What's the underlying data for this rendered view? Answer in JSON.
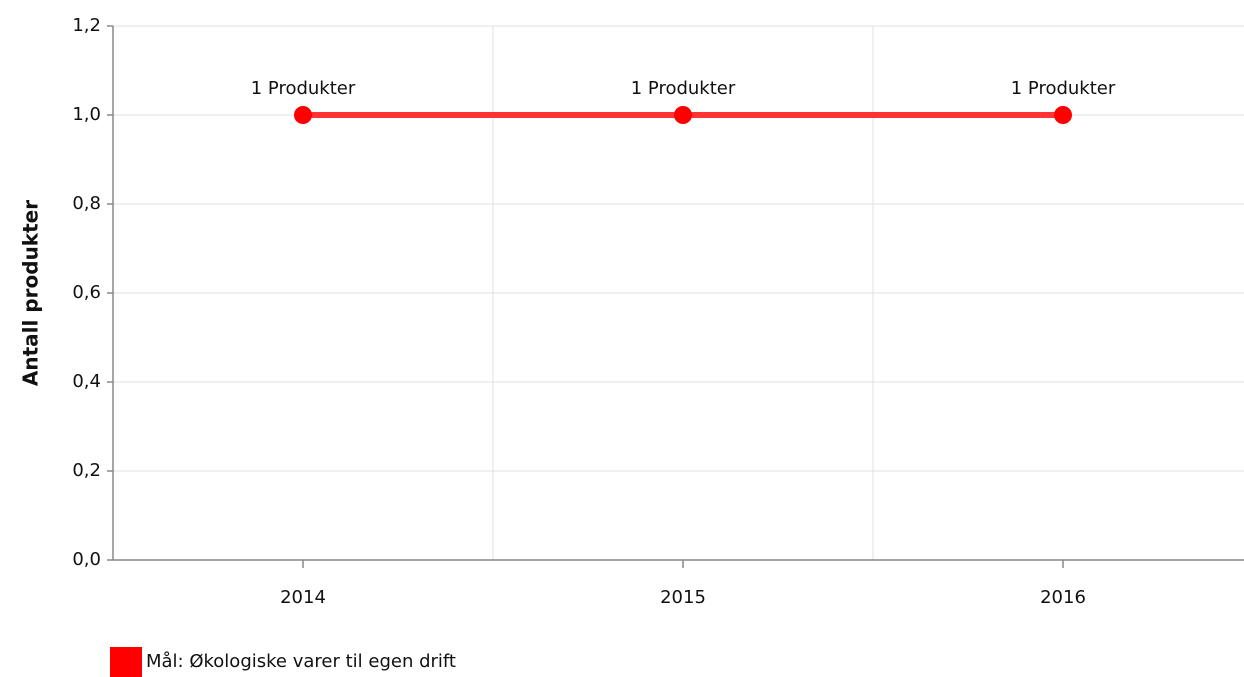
{
  "chart_data": {
    "type": "line",
    "ylabel": "Antall produkter",
    "categories": [
      "2014",
      "2015",
      "2016"
    ],
    "series": [
      {
        "name": "Mål: Økologiske varer til egen drift",
        "color": "#ff3333",
        "marker_color": "#ff0000",
        "values": [
          1,
          1,
          1
        ],
        "value_labels": [
          "1 Produkter",
          "1 Produkter",
          "1 Produkter"
        ]
      }
    ],
    "ylim": [
      0,
      1.2
    ],
    "yticks": [
      {
        "value": 0,
        "label": "0,0"
      },
      {
        "value": 0.2,
        "label": "0,2"
      },
      {
        "value": 0.4,
        "label": "0,4"
      },
      {
        "value": 0.6,
        "label": "0,6"
      },
      {
        "value": 0.8,
        "label": "0,8"
      },
      {
        "value": 1.0,
        "label": "1,0"
      },
      {
        "value": 1.2,
        "label": "1,2"
      }
    ],
    "grid": true,
    "legend": "bottom-left"
  }
}
